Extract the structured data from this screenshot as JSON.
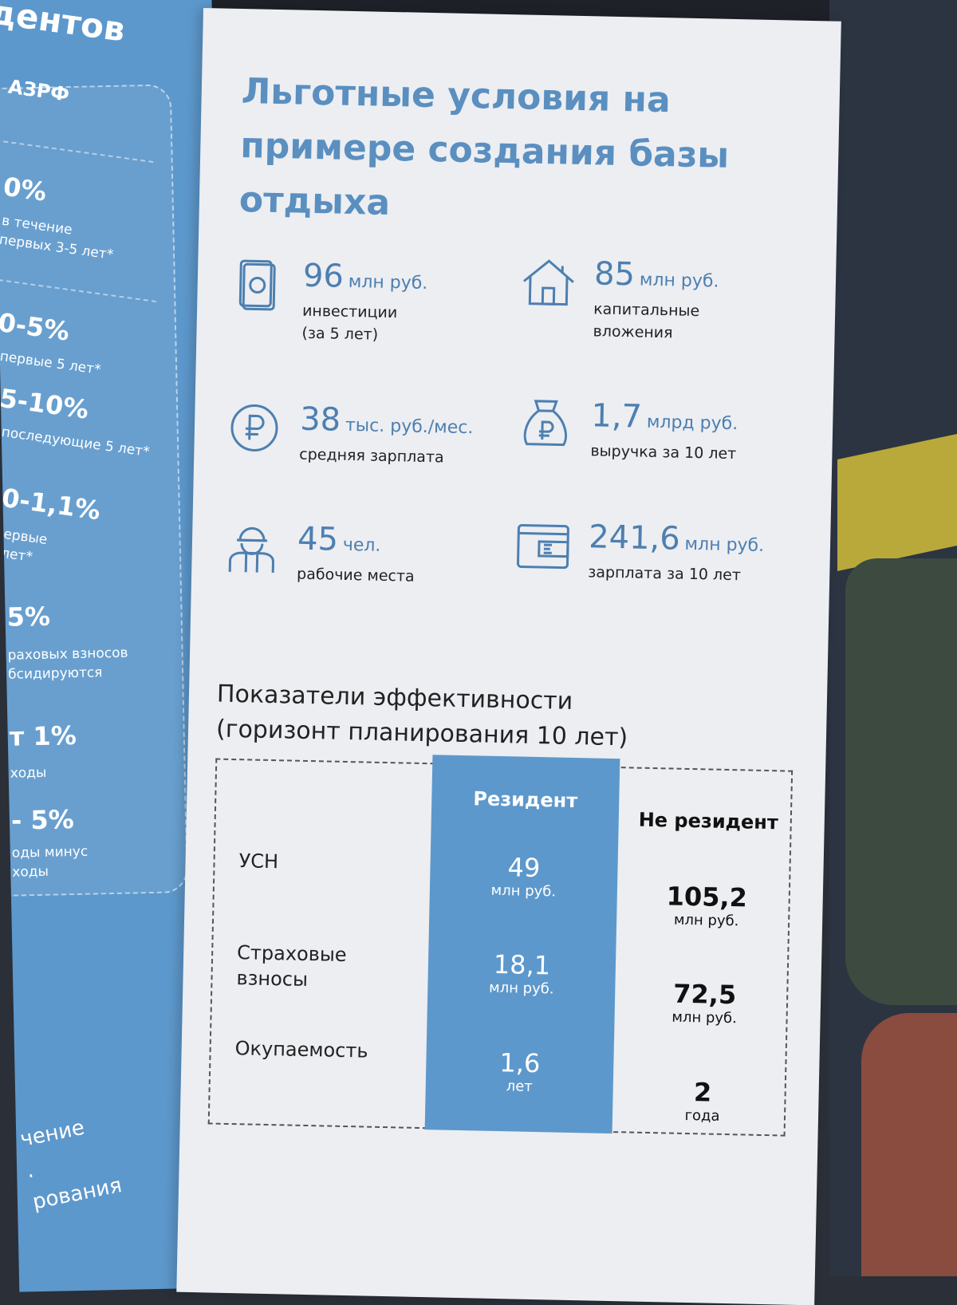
{
  "left_panel": {
    "heading": "дентов",
    "subheading": "АЗРФ",
    "items": [
      {
        "value": "0%",
        "desc": "в течение\nпервых 3-5 лет*"
      },
      {
        "value": "0-5%",
        "desc": "первые 5 лет*"
      },
      {
        "value": "5-10%",
        "desc": "последующие 5 лет*"
      },
      {
        "value": "0-1,1%",
        "desc": "ервые\nлет*"
      },
      {
        "value": "5%",
        "desc": "раховых взносов\nбсидируются"
      },
      {
        "value": "т 1%",
        "desc": "ходы"
      },
      {
        "value": "- 5%",
        "desc": "оды минус\nходы"
      }
    ],
    "footer": "чение\n.\nрования"
  },
  "page": {
    "title": "Льготные условия на примере создания базы отдыха",
    "stats": [
      {
        "number": "96",
        "unit": "млн руб.",
        "label": "инвестиции\n(за 5 лет)",
        "icon": "money-icon"
      },
      {
        "number": "85",
        "unit": "млн руб.",
        "label": "капитальные\nвложения",
        "icon": "house-icon"
      },
      {
        "number": "38",
        "unit": "тыс. руб./мес.",
        "label": "средняя зарплата",
        "icon": "ruble-coin-icon"
      },
      {
        "number": "1,7",
        "unit": "млрд руб.",
        "label": "выручка за 10 лет",
        "icon": "money-bag-icon"
      },
      {
        "number": "45",
        "unit": "чел.",
        "label": "рабочие места",
        "icon": "worker-icon"
      },
      {
        "number": "241,6",
        "unit": "млн руб.",
        "label": "зарплата за 10 лет",
        "icon": "wallet-icon"
      }
    ],
    "indicators": {
      "title": "Показатели эффективности\n(горизонт планирования 10 лет)",
      "rows": [
        "УСН",
        "Страховые\nвзносы",
        "Окупаемость"
      ],
      "resident": {
        "header": "Резидент",
        "values": [
          {
            "value": "49",
            "unit": "млн руб."
          },
          {
            "value": "18,1",
            "unit": "млн руб."
          },
          {
            "value": "1,6",
            "unit": "лет"
          }
        ]
      },
      "non_resident": {
        "header": "Не резидент",
        "values": [
          {
            "value": "105,2",
            "unit": "млн руб."
          },
          {
            "value": "72,5",
            "unit": "млн руб."
          },
          {
            "value": "2",
            "unit": "года"
          }
        ]
      }
    }
  },
  "colors": {
    "accent_blue": "#5d98cc",
    "title_blue": "#5a8fc0",
    "page_bg": "#eceef2"
  }
}
